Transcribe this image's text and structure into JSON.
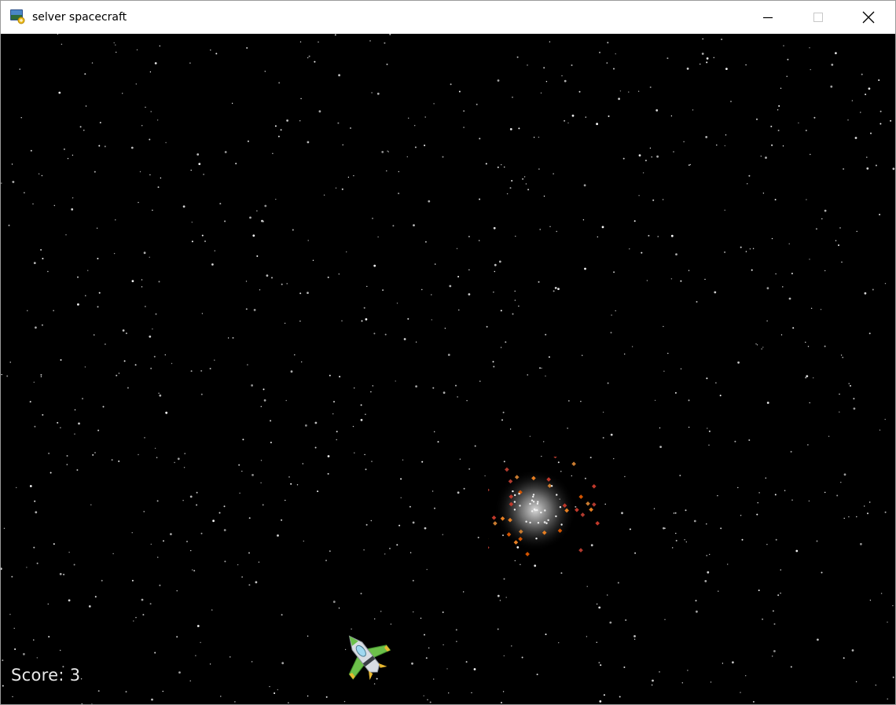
{
  "window": {
    "title": "selver spacecraft",
    "icon": "app-icon",
    "controls": {
      "minimize_icon": "minimize-icon",
      "maximize_icon": "maximize-icon",
      "close_icon": "close-icon"
    }
  },
  "game": {
    "background_color": "#000000",
    "hud": {
      "score_label": "Score:",
      "score_value": "3"
    },
    "player_ship_icon": "spaceship-icon",
    "explosion_icon": "explosion-icon"
  }
}
